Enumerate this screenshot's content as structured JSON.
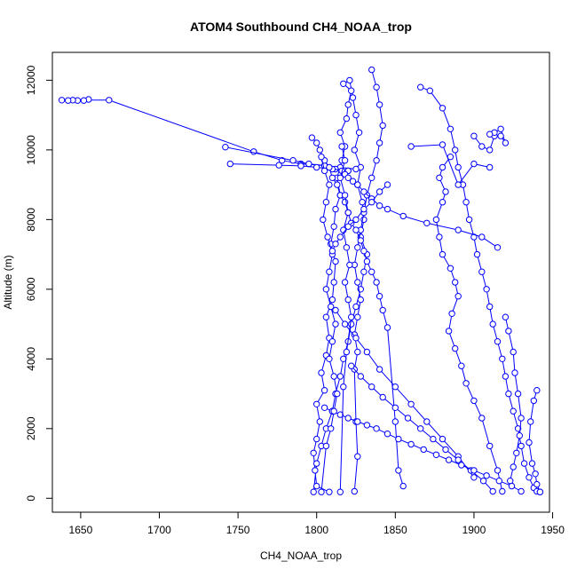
{
  "chart_data": {
    "type": "line",
    "title": "ATOM4 Southbound CH4_NOAA_trop",
    "xlabel": "CH4_NOAA_trop",
    "ylabel": "Altitude (m)",
    "xlim": [
      1632,
      1948
    ],
    "ylim": [
      -400,
      12800
    ],
    "xticks": [
      1650,
      1700,
      1750,
      1800,
      1850,
      1900,
      1950
    ],
    "yticks": [
      0,
      2000,
      4000,
      6000,
      8000,
      10000,
      12000
    ],
    "grid": false,
    "marker": "open-circle",
    "color": "#0000ff",
    "series": [
      {
        "x": [
          1808,
          1800,
          1799,
          1798,
          1800,
          1802,
          1800,
          1805,
          1803,
          1806,
          1808,
          1806,
          1810,
          1811,
          1812,
          1809,
          1811,
          1812,
          1815,
          1813,
          1816,
          1818,
          1815,
          1819,
          1820,
          1822,
          1817,
          1821,
          1823,
          1825,
          1827,
          1824,
          1828,
          1826,
          1829,
          1830,
          1828,
          1832,
          1830,
          1828,
          1825,
          1822,
          1820,
          1817,
          1815,
          1812,
          1810,
          1806,
          1803,
          1800,
          1798
        ],
        "y": [
          180,
          350,
          800,
          1300,
          1700,
          2200,
          2700,
          3100,
          3600,
          4100,
          4600,
          5200,
          5700,
          6200,
          6800,
          7300,
          7800,
          8300,
          8700,
          9200,
          9700,
          10100,
          10500,
          10900,
          11300,
          11700,
          11900,
          12000,
          11500,
          11000,
          10500,
          10000,
          9500,
          9000,
          8500,
          8000,
          7500,
          7000,
          6500,
          6000,
          5500,
          5000,
          4500,
          4000,
          3500,
          3000,
          2500,
          2000,
          1500,
          1000,
          180
        ]
      },
      {
        "x": [
          1655,
          1652,
          1648,
          1645,
          1642,
          1638,
          1668,
          1760,
          1778,
          1790,
          1805,
          1815,
          1825
        ],
        "y": [
          11450,
          11420,
          11420,
          11430,
          11420,
          11430,
          11430,
          9950,
          9700,
          9600,
          9550,
          9500,
          9450
        ]
      },
      {
        "x": [
          1742,
          1785,
          1795,
          1805,
          1812,
          1820
        ],
        "y": [
          10080,
          9700,
          9600,
          9550,
          9450,
          9400
        ]
      },
      {
        "x": [
          1745,
          1776,
          1790,
          1800,
          1810,
          1820
        ],
        "y": [
          9600,
          9560,
          9540,
          9500,
          9450,
          9400
        ]
      },
      {
        "x": [
          1835,
          1838,
          1840,
          1842,
          1840,
          1838,
          1835,
          1832,
          1830,
          1828,
          1826,
          1824,
          1826,
          1828,
          1826,
          1824,
          1826,
          1824,
          1825,
          1826,
          1824
        ],
        "y": [
          12300,
          11800,
          11300,
          10700,
          10200,
          9700,
          9200,
          8700,
          8200,
          7700,
          7200,
          6700,
          6200,
          5700,
          5200,
          4700,
          4200,
          3700,
          2200,
          1200,
          200
        ]
      },
      {
        "x": [
          1866,
          1872,
          1880,
          1885,
          1888,
          1890,
          1893,
          1895,
          1897,
          1900,
          1902,
          1905,
          1908,
          1910,
          1912,
          1915,
          1918,
          1920,
          1922,
          1925,
          1928,
          1930,
          1932,
          1935,
          1938,
          1940,
          1942
        ],
        "y": [
          11800,
          11700,
          11200,
          10600,
          10000,
          9500,
          9000,
          8500,
          8000,
          7500,
          7000,
          6500,
          6000,
          5500,
          5000,
          4500,
          4000,
          3500,
          3000,
          2500,
          2000,
          1500,
          1000,
          600,
          300,
          200,
          180
        ]
      },
      {
        "x": [
          1885,
          1880,
          1878,
          1882,
          1880,
          1876,
          1878,
          1880,
          1885,
          1888,
          1890,
          1886,
          1884,
          1888,
          1892,
          1895,
          1900,
          1905,
          1910,
          1915,
          1918
        ],
        "y": [
          9800,
          9500,
          9200,
          8800,
          8500,
          8000,
          7500,
          7000,
          6600,
          6200,
          5800,
          5300,
          4800,
          4300,
          3800,
          3300,
          2800,
          2300,
          1500,
          800,
          200
        ]
      },
      {
        "x": [
          1940,
          1938,
          1936,
          1935,
          1937,
          1939,
          1940,
          1942
        ],
        "y": [
          3100,
          2800,
          2200,
          1600,
          1000,
          700,
          400,
          180
        ]
      },
      {
        "x": [
          1920,
          1922,
          1925,
          1926,
          1928,
          1930,
          1929,
          1927,
          1925,
          1923
        ],
        "y": [
          5200,
          4800,
          4200,
          3600,
          3000,
          2300,
          1800,
          1300,
          900,
          500
        ]
      },
      {
        "x": [
          1900,
          1905,
          1910,
          1913,
          1917,
          1920,
          1917,
          1913,
          1910
        ],
        "y": [
          10400,
          10100,
          10000,
          10400,
          10400,
          10200,
          10600,
          10500,
          10450
        ]
      },
      {
        "x": [
          1797,
          1800,
          1802,
          1805,
          1808,
          1810,
          1813,
          1815,
          1818,
          1820,
          1822,
          1825,
          1828,
          1830,
          1832,
          1835,
          1838,
          1840,
          1842,
          1845,
          1850,
          1852,
          1855
        ],
        "y": [
          10350,
          10200,
          10000,
          9700,
          9500,
          9200,
          9000,
          8700,
          8500,
          8200,
          7900,
          7700,
          7400,
          7100,
          6800,
          6500,
          6200,
          5800,
          5400,
          4900,
          2200,
          800,
          350
        ]
      },
      {
        "x": [
          1816,
          1818,
          1820,
          1823,
          1826,
          1830,
          1835,
          1840,
          1845,
          1855,
          1870,
          1890,
          1905,
          1915
        ],
        "y": [
          9400,
          9300,
          9200,
          9100,
          9000,
          8800,
          8600,
          8400,
          8300,
          8100,
          7900,
          7700,
          7500,
          7200
        ]
      },
      {
        "x": [
          1812,
          1818,
          1825,
          1832,
          1840,
          1850,
          1860,
          1870,
          1880,
          1890,
          1900
        ],
        "y": [
          5400,
          5000,
          4600,
          4200,
          3700,
          3200,
          2700,
          2200,
          1700,
          1200,
          600
        ]
      },
      {
        "x": [
          1822,
          1828,
          1835,
          1842,
          1850,
          1858,
          1866,
          1874,
          1882,
          1890,
          1898,
          1906,
          1912
        ],
        "y": [
          3800,
          3500,
          3200,
          2900,
          2600,
          2300,
          2000,
          1700,
          1400,
          1100,
          800,
          500,
          200
        ]
      },
      {
        "x": [
          1805,
          1810,
          1815,
          1820,
          1826,
          1832,
          1838,
          1845,
          1852,
          1860,
          1868,
          1876,
          1884,
          1892,
          1900,
          1908,
          1916,
          1924,
          1930
        ],
        "y": [
          2600,
          2500,
          2400,
          2300,
          2200,
          2100,
          2000,
          1850,
          1700,
          1550,
          1400,
          1250,
          1100,
          950,
          800,
          650,
          500,
          350,
          200
        ]
      },
      {
        "x": [
          1803,
          1805,
          1808,
          1806,
          1804,
          1807,
          1810,
          1808,
          1806,
          1809,
          1812,
          1810,
          1808,
          1811,
          1813,
          1811,
          1809,
          1806,
          1803
        ],
        "y": [
          9800,
          9400,
          9000,
          8500,
          8000,
          7500,
          7000,
          6500,
          6000,
          5500,
          5000,
          4500,
          4000,
          3500,
          3000,
          2500,
          2000,
          1500,
          180
        ]
      },
      {
        "x": [
          1816,
          1818,
          1815,
          1818,
          1820,
          1817,
          1819,
          1821,
          1818,
          1820,
          1822,
          1819,
          1817,
          1815
        ],
        "y": [
          10100,
          9700,
          9200,
          8700,
          8200,
          7700,
          7200,
          6700,
          6200,
          5700,
          5200,
          4200,
          3200,
          180
        ]
      },
      {
        "x": [
          1845,
          1840,
          1835,
          1830,
          1825,
          1820,
          1815,
          1812,
          1810
        ],
        "y": [
          9000,
          8800,
          8500,
          8300,
          8000,
          7800,
          7500,
          7300,
          7100
        ]
      },
      {
        "x": [
          1860,
          1880,
          1890,
          1900,
          1910
        ],
        "y": [
          10100,
          10150,
          9000,
          9600,
          9500
        ]
      }
    ]
  }
}
